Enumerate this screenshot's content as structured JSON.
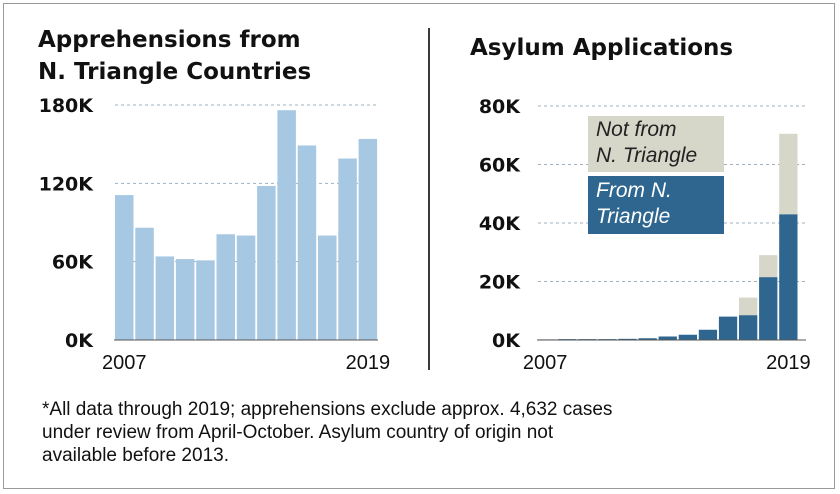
{
  "colors": {
    "apprehension_bar": "#a7c8e2",
    "from_nt": "#2e6690",
    "not_from_nt": "#d6d6c9",
    "gridline": "#9fb0bf"
  },
  "footnote": {
    "line1": "*All data through 2019;  apprehensions exclude approx. 4,632 cases",
    "line2": "under review from April-October. Asylum country of origin not",
    "line3": "available before 2013."
  },
  "chart_data": [
    {
      "type": "bar",
      "title_line1": "Apprehensions from",
      "title_line2": "N. Triangle Countries",
      "x_tick_labels": [
        "2007",
        "2019"
      ],
      "y_tick_labels": [
        "0K",
        "60K",
        "120K",
        "180K"
      ],
      "ylim": [
        0,
        180000
      ],
      "grid": true,
      "categories": [
        "2007",
        "2008",
        "2009",
        "2010",
        "2011",
        "2012",
        "2013",
        "2014",
        "2015",
        "2016",
        "2017",
        "2018",
        "2019"
      ],
      "values": [
        111000,
        86000,
        64000,
        62000,
        61000,
        81000,
        80000,
        118000,
        176000,
        149000,
        80000,
        139000,
        154000
      ]
    },
    {
      "type": "bar",
      "stacked": true,
      "title": "Asylum Applications",
      "x_tick_labels": [
        "2007",
        "2019"
      ],
      "y_tick_labels": [
        "0K",
        "20K",
        "40K",
        "60K",
        "80K"
      ],
      "ylim": [
        0,
        80000
      ],
      "grid": true,
      "legend_placement": "inside top-right",
      "categories": [
        "2007",
        "2008",
        "2009",
        "2010",
        "2011",
        "2012",
        "2013",
        "2014",
        "2015",
        "2016",
        "2017",
        "2018",
        "2019"
      ],
      "series": [
        {
          "name": "From N. Triangle",
          "legend_line1": "From N.",
          "legend_line2": "Triangle",
          "values": [
            200,
            300,
            300,
            300,
            400,
            600,
            1200,
            1800,
            3500,
            8000,
            8500,
            21500,
            43000
          ]
        },
        {
          "name": "Not from N. Triangle",
          "legend_line1": "Not from",
          "legend_line2": "N. Triangle",
          "values": [
            0,
            0,
            0,
            0,
            0,
            0,
            0,
            0,
            0,
            0,
            6000,
            7500,
            27500
          ]
        }
      ]
    }
  ]
}
